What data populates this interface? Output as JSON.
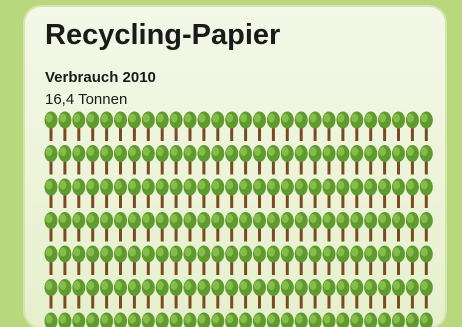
{
  "header": {
    "title": "Recycling-Papier",
    "subtitle": "Verbrauch 2010",
    "amount": "16,4 Tonnen"
  }
}
